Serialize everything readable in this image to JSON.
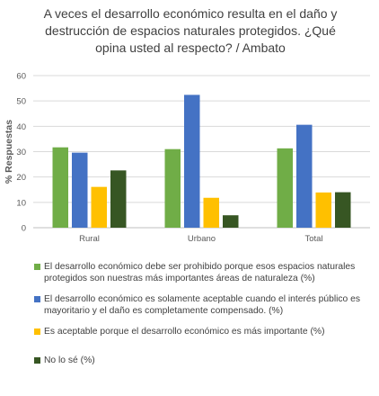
{
  "chart_data": {
    "type": "bar",
    "title": "A veces el desarrollo económico resulta en el daño y\ndestrucción de espacios naturales protegidos. ¿Qué\nopina usted al respecto? / Ambato",
    "ylabel": "% Respuestas",
    "xlabel": "",
    "ylim": [
      0,
      60
    ],
    "yticks": [
      0,
      10,
      20,
      30,
      40,
      50,
      60
    ],
    "categories": [
      "Rural",
      "Urbano",
      "Total"
    ],
    "grid": true,
    "legend_position": "bottom",
    "series": [
      {
        "name": "El desarrollo económico debe ser prohibido porque esos espacios naturales protegidos son nuestras más importantes áreas de naturaleza (%)",
        "color": "#70ad47",
        "values": [
          31.7,
          31.0,
          31.3
        ]
      },
      {
        "name": "El desarrollo económico es solamente aceptable cuando el interés público es mayoritario y el daño es completamente compensado. (%)",
        "color": "#4472c4",
        "values": [
          29.6,
          52.4,
          40.6
        ]
      },
      {
        "name": "Es aceptable porque el desarrollo económico es más importante (%)",
        "color": "#ffc000",
        "values": [
          16.1,
          11.8,
          13.9
        ]
      },
      {
        "name": "No lo sé (%)",
        "color": "#375623",
        "values": [
          22.6,
          4.9,
          14.0
        ]
      }
    ]
  }
}
